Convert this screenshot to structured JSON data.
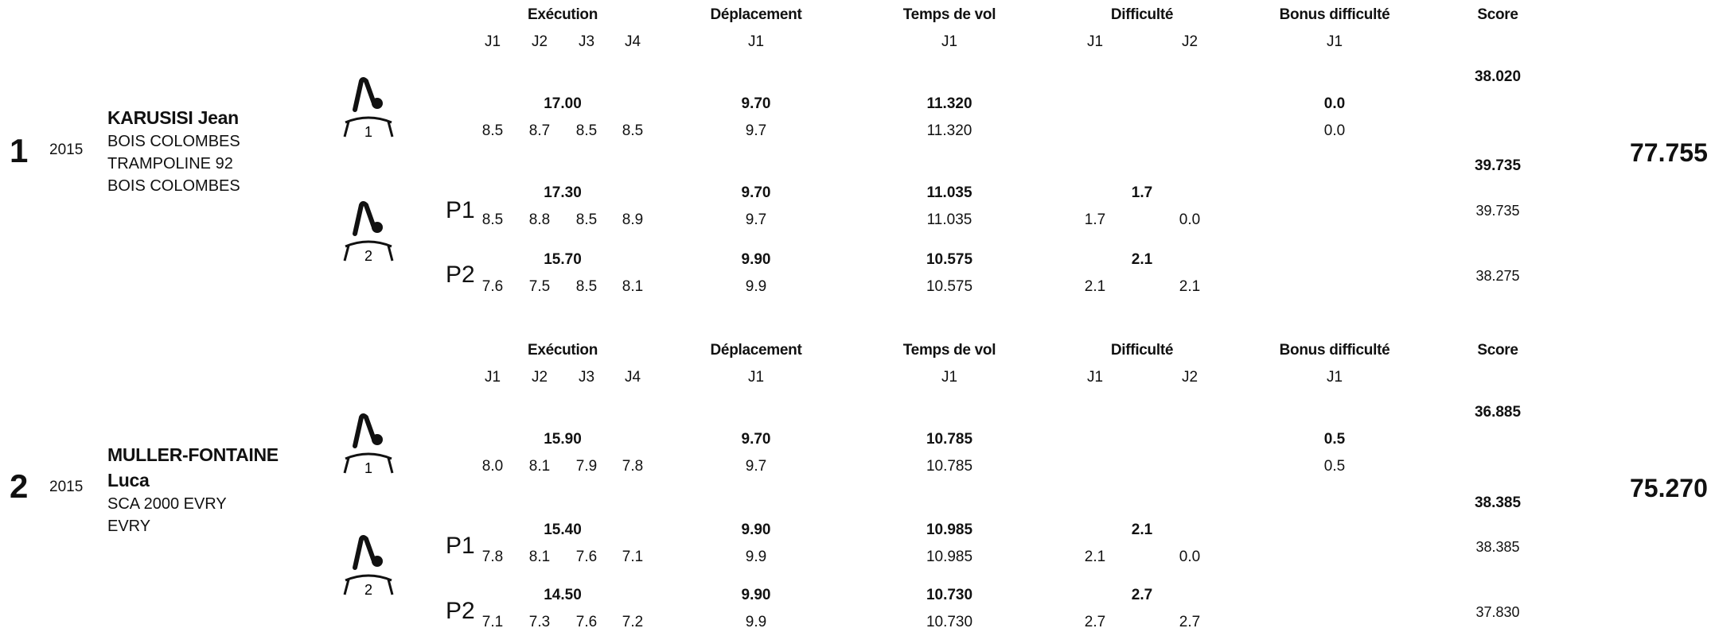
{
  "headers": {
    "execution": "Exécution",
    "deplacement": "Déplacement",
    "temps_de_vol": "Temps de vol",
    "difficulte": "Difficulté",
    "bonus_difficulte": "Bonus difficulté",
    "score": "Score",
    "j1": "J1",
    "j2": "J2",
    "j3": "J3",
    "j4": "J4"
  },
  "athletes": [
    {
      "rank": "1",
      "year": "2015",
      "name": "KARUSISI Jean",
      "club_lines": [
        "BOIS COLOMBES",
        "TRAMPOLINE 92",
        "BOIS COLOMBES"
      ],
      "total": "77.755",
      "icon1_label": "1",
      "icon2_label": "2",
      "routine1": {
        "score": "38.020",
        "exec_total": "17.00",
        "exec_j": [
          "8.5",
          "8.7",
          "8.5",
          "8.5"
        ],
        "dep_total": "9.70",
        "dep_j1": "9.7",
        "tof_total": "11.320",
        "tof_j1": "11.320",
        "bonus_total": "0.0",
        "bonus_j1": "0.0"
      },
      "routine2": {
        "best_score": "39.735",
        "p1": {
          "label": "P1",
          "score": "39.735",
          "exec_total": "17.30",
          "exec_j": [
            "8.5",
            "8.8",
            "8.5",
            "8.9"
          ],
          "dep_total": "9.70",
          "dep_j1": "9.7",
          "tof_total": "11.035",
          "tof_j1": "11.035",
          "diff_total": "1.7",
          "diff_j": [
            "1.7",
            "0.0"
          ]
        },
        "p2": {
          "label": "P2",
          "score": "38.275",
          "exec_total": "15.70",
          "exec_j": [
            "7.6",
            "7.5",
            "8.5",
            "8.1"
          ],
          "dep_total": "9.90",
          "dep_j1": "9.9",
          "tof_total": "10.575",
          "tof_j1": "10.575",
          "diff_total": "2.1",
          "diff_j": [
            "2.1",
            "2.1"
          ]
        }
      }
    },
    {
      "rank": "2",
      "year": "2015",
      "name_line1": "MULLER-FONTAINE",
      "name_line2": "Luca",
      "club_lines": [
        "SCA 2000 EVRY",
        "EVRY"
      ],
      "total": "75.270",
      "icon1_label": "1",
      "icon2_label": "2",
      "routine1": {
        "score": "36.885",
        "exec_total": "15.90",
        "exec_j": [
          "8.0",
          "8.1",
          "7.9",
          "7.8"
        ],
        "dep_total": "9.70",
        "dep_j1": "9.7",
        "tof_total": "10.785",
        "tof_j1": "10.785",
        "bonus_total": "0.5",
        "bonus_j1": "0.5"
      },
      "routine2": {
        "best_score": "38.385",
        "p1": {
          "label": "P1",
          "score": "38.385",
          "exec_total": "15.40",
          "exec_j": [
            "7.8",
            "8.1",
            "7.6",
            "7.1"
          ],
          "dep_total": "9.90",
          "dep_j1": "9.9",
          "tof_total": "10.985",
          "tof_j1": "10.985",
          "diff_total": "2.1",
          "diff_j": [
            "2.1",
            "0.0"
          ]
        },
        "p2": {
          "label": "P2",
          "score": "37.830",
          "exec_total": "14.50",
          "exec_j": [
            "7.1",
            "7.3",
            "7.6",
            "7.2"
          ],
          "dep_total": "9.90",
          "dep_j1": "9.9",
          "tof_total": "10.730",
          "tof_j1": "10.730",
          "diff_total": "2.7",
          "diff_j": [
            "2.7",
            "2.7"
          ]
        }
      }
    }
  ]
}
